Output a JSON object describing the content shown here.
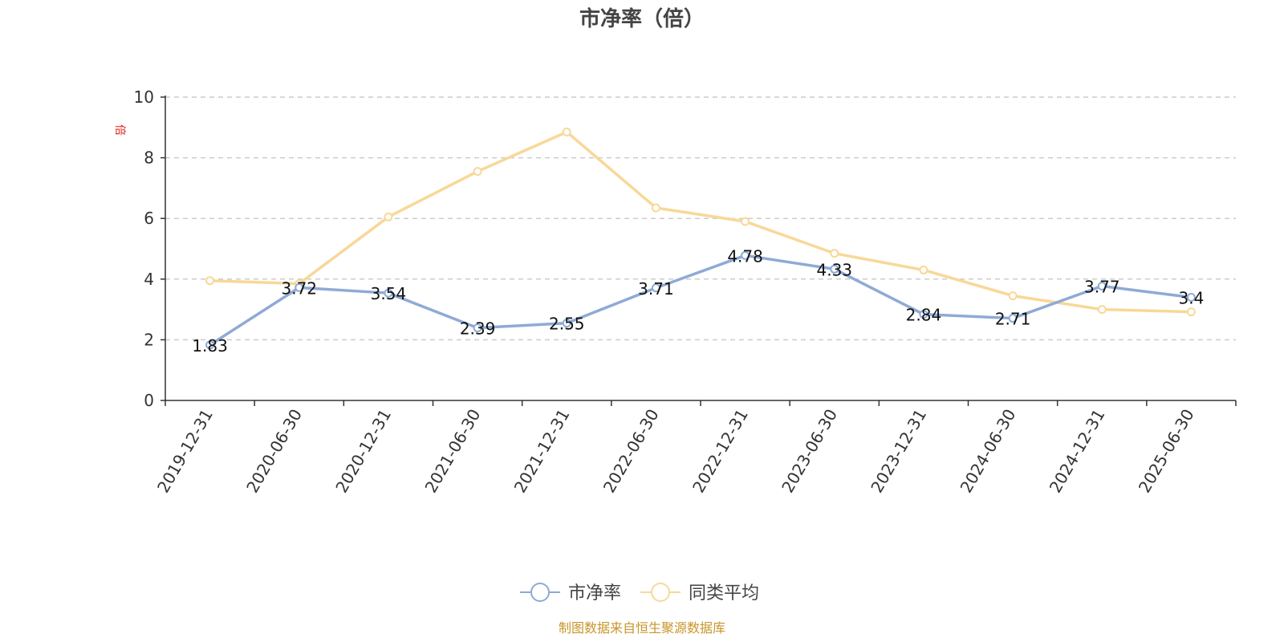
{
  "chart_data": {
    "type": "line",
    "title": "市净率（倍）",
    "y_unit": "倍",
    "ylim": [
      0,
      10
    ],
    "y_ticks": [
      0,
      2,
      4,
      6,
      8,
      10
    ],
    "grid": true,
    "legend_position": "bottom-center",
    "categories": [
      "2019-12-31",
      "2020-06-30",
      "2020-12-31",
      "2021-06-30",
      "2021-12-31",
      "2022-06-30",
      "2022-12-31",
      "2023-06-30",
      "2023-12-31",
      "2024-06-30",
      "2024-12-31",
      "2025-06-30"
    ],
    "series": [
      {
        "name": "市净率",
        "color": "#8eaad6",
        "show_labels": true,
        "values": [
          1.83,
          3.72,
          3.54,
          2.39,
          2.55,
          3.71,
          4.78,
          4.33,
          2.84,
          2.71,
          3.77,
          3.4
        ]
      },
      {
        "name": "同类平均",
        "color": "#f8d898",
        "show_labels": false,
        "values": [
          3.95,
          3.85,
          6.05,
          7.55,
          8.85,
          6.35,
          5.9,
          4.85,
          4.3,
          3.45,
          3.0,
          2.92
        ]
      }
    ]
  },
  "source_note": "制图数据来自恒生聚源数据库"
}
